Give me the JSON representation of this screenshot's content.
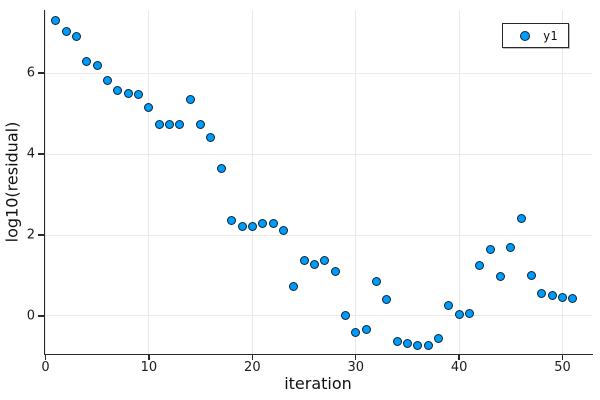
{
  "chart_data": {
    "type": "scatter",
    "title": "",
    "xlabel": "iteration",
    "ylabel": "log10(residual)",
    "grid": true,
    "legend_position": "top-right",
    "legend_entries": [
      {
        "label": "y1",
        "marker": "circle",
        "color": "#009af9"
      }
    ],
    "xlim": [
      -0.15,
      52.85
    ],
    "ylim": [
      -0.94,
      7.56
    ],
    "xticks": [
      0,
      10,
      20,
      30,
      40,
      50
    ],
    "yticks": [
      0,
      2,
      4,
      6
    ],
    "x": [
      1,
      2,
      3,
      4,
      5,
      6,
      7,
      8,
      9,
      10,
      11,
      12,
      13,
      14,
      15,
      16,
      17,
      18,
      19,
      20,
      21,
      22,
      23,
      24,
      25,
      26,
      27,
      28,
      29,
      30,
      31,
      32,
      33,
      34,
      35,
      36,
      37,
      38,
      39,
      40,
      41,
      42,
      43,
      44,
      45,
      46,
      47,
      48,
      49,
      50,
      51
    ],
    "series": [
      {
        "name": "y1",
        "y": [
          7.3,
          7.02,
          6.9,
          6.28,
          6.2,
          5.82,
          5.58,
          5.5,
          5.47,
          5.16,
          4.72,
          4.72,
          4.73,
          5.35,
          4.72,
          4.4,
          3.65,
          2.37,
          2.2,
          2.2,
          2.28,
          2.28,
          2.1,
          0.73,
          1.38,
          1.28,
          1.37,
          1.1,
          0.0,
          -0.4,
          -0.34,
          0.84,
          0.41,
          -0.62,
          -0.68,
          -0.72,
          -0.73,
          -0.55,
          0.25,
          0.03,
          0.06,
          1.25,
          1.63,
          0.97,
          1.7,
          2.4,
          1.0,
          0.55,
          0.5,
          0.46,
          0.43
        ]
      }
    ],
    "colors": {
      "marker_fill": "#009af9",
      "marker_stroke": "#1a1a1a",
      "grid": "#e9e9e9",
      "axis": "#2a2a2a",
      "background": "#ffffff"
    }
  }
}
